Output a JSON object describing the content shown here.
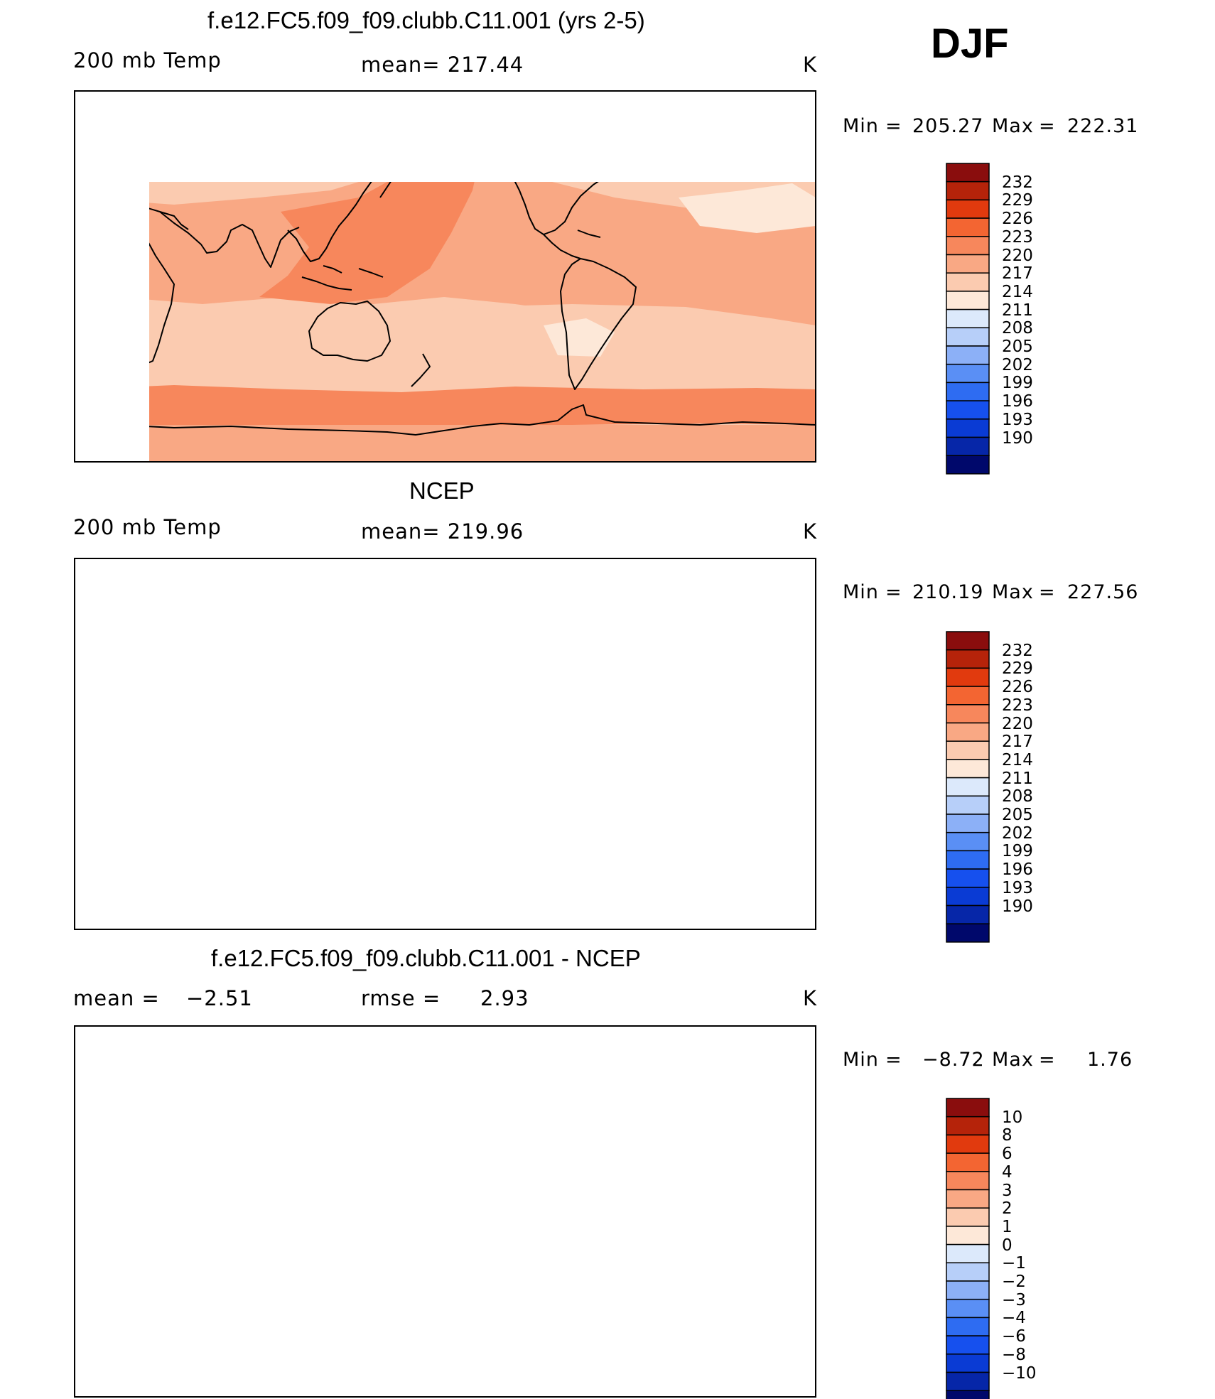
{
  "season": "DJF",
  "colors": {
    "temp_scale": [
      "#00086b",
      "#0626a8",
      "#0a3bd4",
      "#1650ee",
      "#2e6cf2",
      "#5a8ff5",
      "#8cb0f7",
      "#b7cff9",
      "#dce9fb",
      "#fde8d8",
      "#fbcbb0",
      "#f9a884",
      "#f7875c",
      "#f36532",
      "#e13a0e",
      "#b5230a",
      "#8a0d0d"
    ],
    "diff_scale": [
      "#00086b",
      "#0626a8",
      "#0a3bd4",
      "#1650ee",
      "#2e6cf2",
      "#5a8ff5",
      "#8cb0f7",
      "#b7cff9",
      "#dce9fb",
      "#fde8d8",
      "#fbcbb0",
      "#f9a884",
      "#f7875c",
      "#f36532",
      "#e13a0e",
      "#b5230a",
      "#8a0d0d"
    ],
    "coastline": "#000000"
  },
  "panels": [
    {
      "id": "model",
      "title": "f.e12.FC5.f09_f09.clubb.C11.001 (yrs 2-5)",
      "left_label": "200 mb Temp",
      "center_label": "mean= 217.44",
      "right_label": "K",
      "min_label": "Min",
      "min_value": "205.27",
      "max_label": "Max",
      "max_value": "222.31",
      "levels": [
        "232",
        "229",
        "226",
        "223",
        "220",
        "217",
        "214",
        "211",
        "208",
        "205",
        "202",
        "199",
        "196",
        "193",
        "190"
      ]
    },
    {
      "id": "obs",
      "title": "NCEP",
      "left_label": "200 mb Temp",
      "center_label": "mean= 219.96",
      "right_label": "K",
      "min_label": "Min",
      "min_value": "210.19",
      "max_label": "Max",
      "max_value": "227.56",
      "levels": [
        "232",
        "229",
        "226",
        "223",
        "220",
        "217",
        "214",
        "211",
        "208",
        "205",
        "202",
        "199",
        "196",
        "193",
        "190"
      ]
    },
    {
      "id": "diff",
      "title": "f.e12.FC5.f09_f09.clubb.C11.001 - NCEP",
      "left_label": "mean =",
      "left_value": "−2.51",
      "center_label": "rmse =",
      "center_value": "2.93",
      "right_label": "K",
      "min_label": "Min",
      "min_value": "−8.72",
      "max_label": "Max",
      "max_value": "1.76",
      "levels": [
        "10",
        "8",
        "6",
        "4",
        "3",
        "2",
        "1",
        "0",
        "−1",
        "−2",
        "−3",
        "−4",
        "−6",
        "−8",
        "−10"
      ]
    }
  ]
}
